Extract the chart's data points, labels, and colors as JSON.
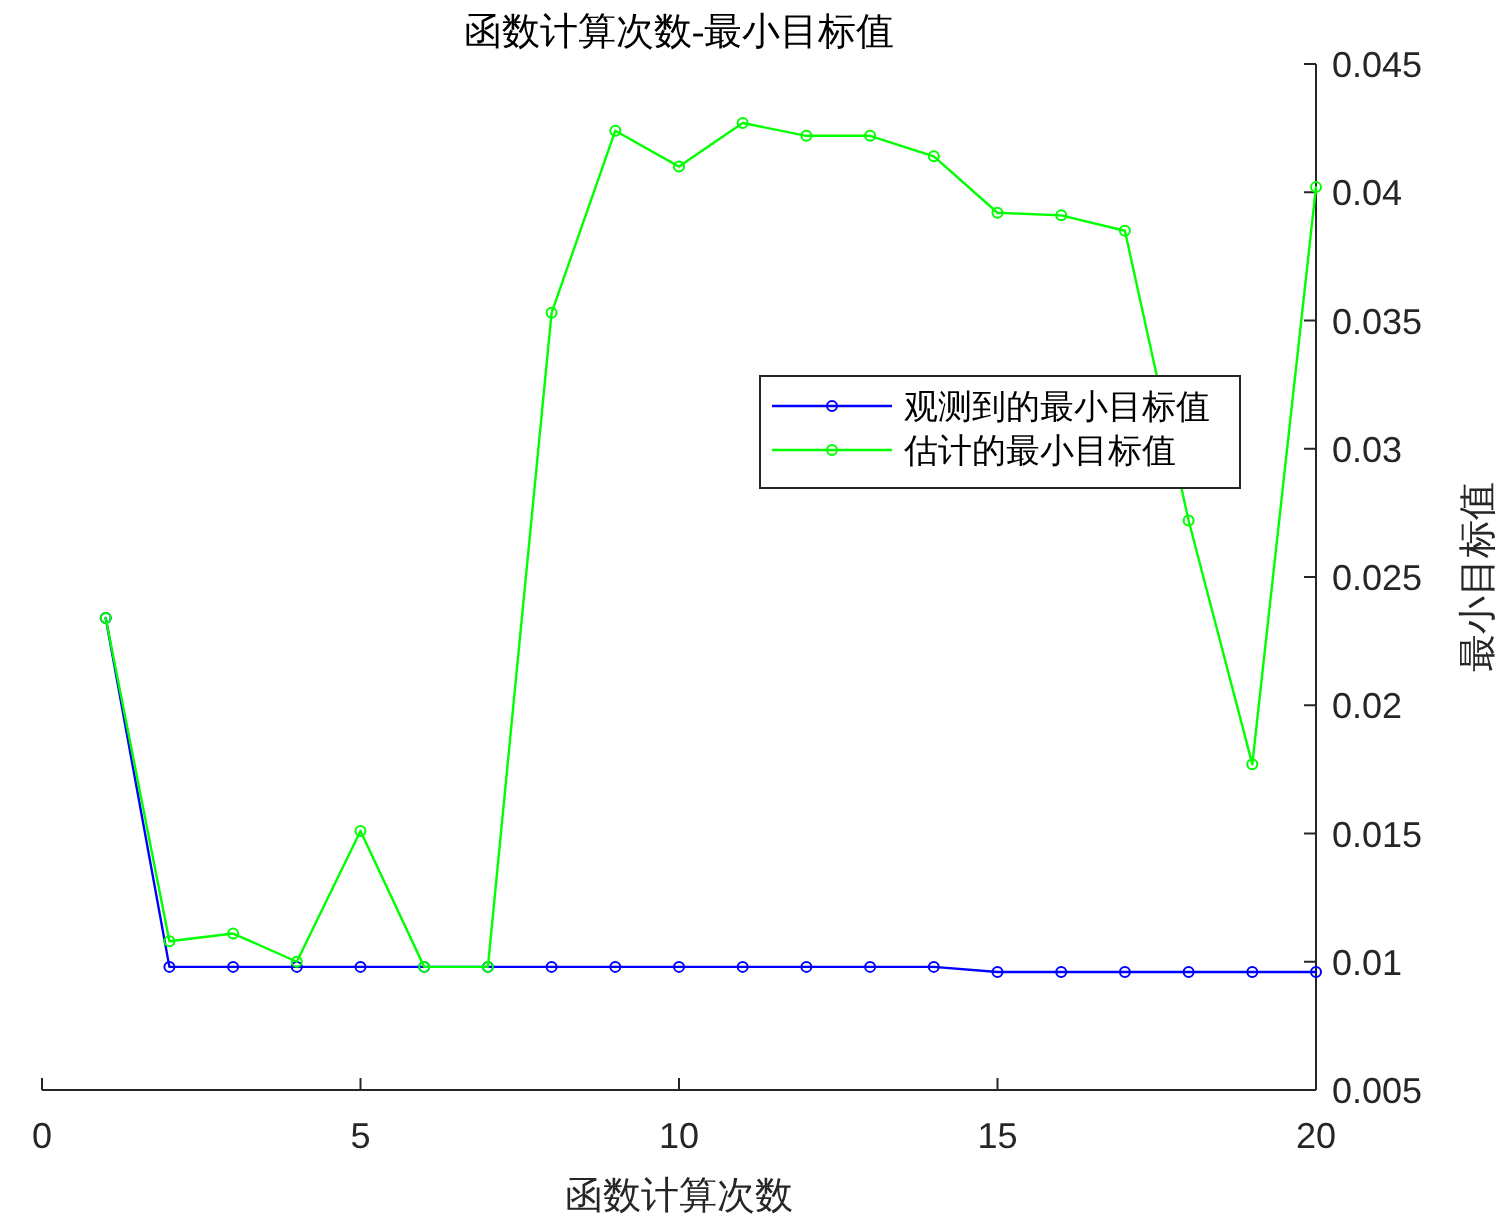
{
  "chart_data": {
    "type": "line",
    "title": "函数计算次数-最小目标值",
    "xlabel": "函数计算次数",
    "ylabel": "最小目标值",
    "x": [
      1,
      2,
      3,
      4,
      5,
      6,
      7,
      8,
      9,
      10,
      11,
      12,
      13,
      14,
      15,
      16,
      17,
      18,
      19,
      20
    ],
    "series": [
      {
        "name": "观测到的最小目标值",
        "color": "#0000ff",
        "values": [
          0.0234,
          0.0098,
          0.0098,
          0.0098,
          0.0098,
          0.0098,
          0.0098,
          0.0098,
          0.0098,
          0.0098,
          0.0098,
          0.0098,
          0.0098,
          0.0098,
          0.0096,
          0.0096,
          0.0096,
          0.0096,
          0.0096,
          0.0096
        ]
      },
      {
        "name": "估计的最小目标值",
        "color": "#00ff00",
        "values": [
          0.0234,
          0.0108,
          0.0111,
          0.01,
          0.0151,
          0.0098,
          0.0098,
          0.0353,
          0.0424,
          0.041,
          0.0427,
          0.0422,
          0.0422,
          0.0414,
          0.0392,
          0.0391,
          0.0385,
          0.0272,
          0.0177,
          0.0402
        ]
      }
    ],
    "xlim": [
      0,
      20
    ],
    "xticks": [
      0,
      5,
      10,
      15,
      20
    ],
    "ylim": [
      0.005,
      0.045
    ],
    "yticks": [
      0.005,
      0.01,
      0.015,
      0.02,
      0.025,
      0.03,
      0.035,
      0.04,
      0.045
    ],
    "legend": "right",
    "marker": "circle",
    "line_style": "solid"
  }
}
